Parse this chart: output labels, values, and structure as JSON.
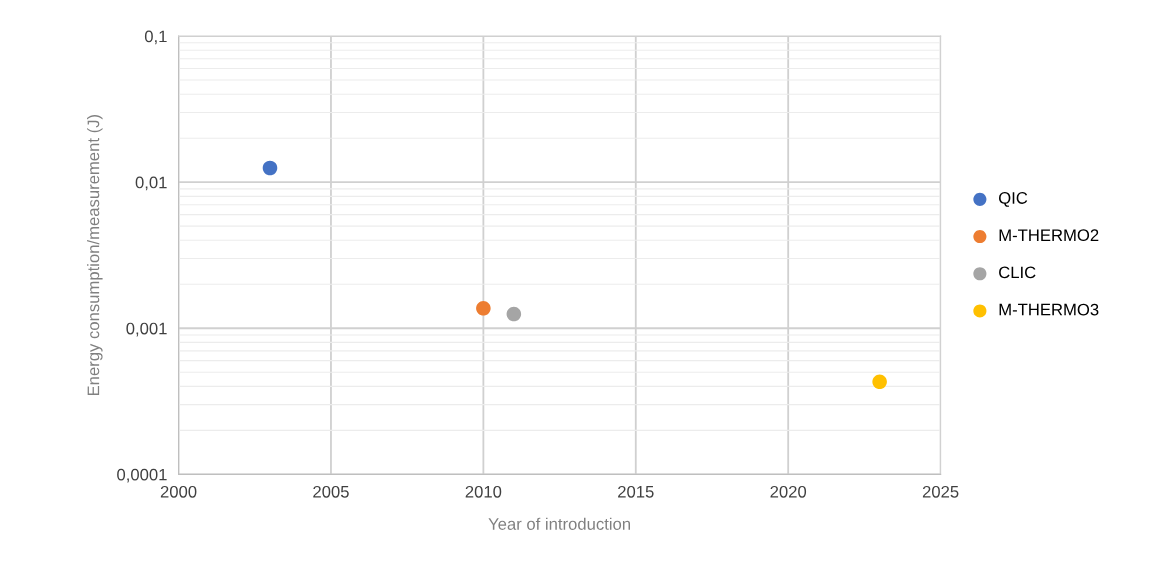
{
  "chart_data": {
    "type": "scatter",
    "xlabel": "Year of introduction",
    "ylabel": "Energy consumption/measurement (J)",
    "series": [
      {
        "name": "QIC",
        "color": "#4472c4",
        "x": [
          2003
        ],
        "values": [
          0.0125
        ]
      },
      {
        "name": "M-THERMO2",
        "color": "#ed7d31",
        "x": [
          2010
        ],
        "values": [
          0.00137
        ]
      },
      {
        "name": "CLIC",
        "color": "#a5a5a5",
        "x": [
          2011
        ],
        "values": [
          0.00125
        ]
      },
      {
        "name": "M-THERMO3",
        "color": "#ffc000",
        "x": [
          2023
        ],
        "values": [
          0.00043
        ]
      }
    ],
    "log": "y",
    "xlim": [
      2000,
      2025
    ],
    "xticks": [
      2000,
      2005,
      2010,
      2015,
      2020,
      2025
    ],
    "ylim": [
      0.0001,
      0.1
    ],
    "yticks": [
      {
        "value": 0.0001,
        "label": "0,0001"
      },
      {
        "value": 0.001,
        "label": "0,001"
      },
      {
        "value": 0.01,
        "label": "0,01"
      },
      {
        "value": 0.1,
        "label": "0,1"
      }
    ],
    "grid": true,
    "legend": "right",
    "marker": "circle"
  }
}
